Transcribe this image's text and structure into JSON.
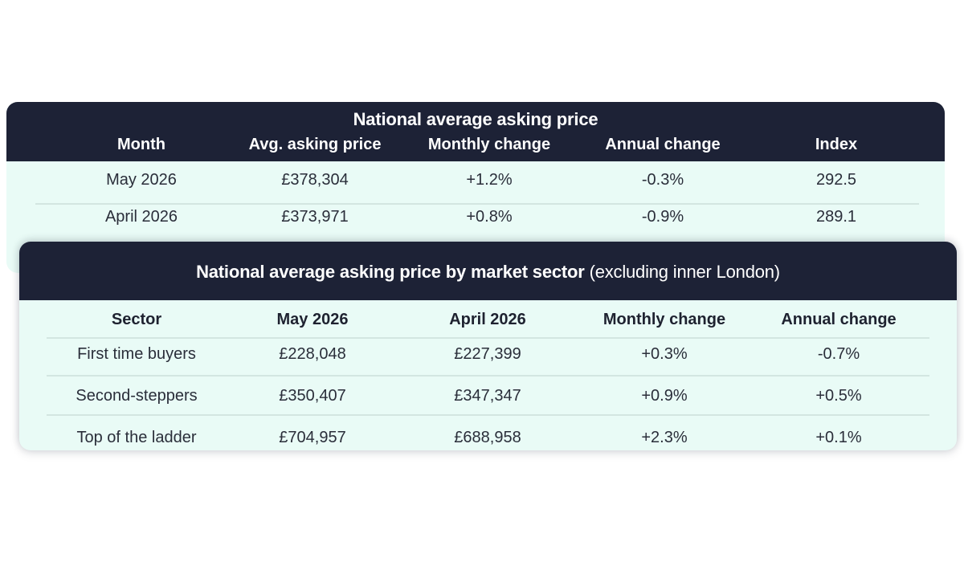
{
  "chart_data": [
    {
      "type": "table",
      "title": "National average asking price",
      "columns": [
        "Month",
        "Avg. asking price",
        "Monthly change",
        "Annual change",
        "Index"
      ],
      "rows": [
        [
          "May 2026",
          "£378,304",
          "+1.2%",
          "-0.3%",
          "292.5"
        ],
        [
          "April 2026",
          "£373,971",
          "+0.8%",
          "-0.9%",
          "289.1"
        ]
      ]
    },
    {
      "type": "table",
      "title": "National average asking price by market sector",
      "subtitle": "(excluding inner London)",
      "columns": [
        "Sector",
        "May 2026",
        "April 2026",
        "Monthly change",
        "Annual change"
      ],
      "rows": [
        [
          "First time buyers",
          "£228,048",
          "£227,399",
          "+0.3%",
          "-0.7%"
        ],
        [
          "Second-steppers",
          "£350,407",
          "£347,347",
          "+0.9%",
          "+0.5%"
        ],
        [
          "Top of the ladder",
          "£704,957",
          "£688,958",
          "+2.3%",
          "+0.1%"
        ]
      ]
    }
  ],
  "colors": {
    "header_background": "#1d2236",
    "body_background": "#e9fbf6",
    "divider": "#d3e6e1"
  }
}
